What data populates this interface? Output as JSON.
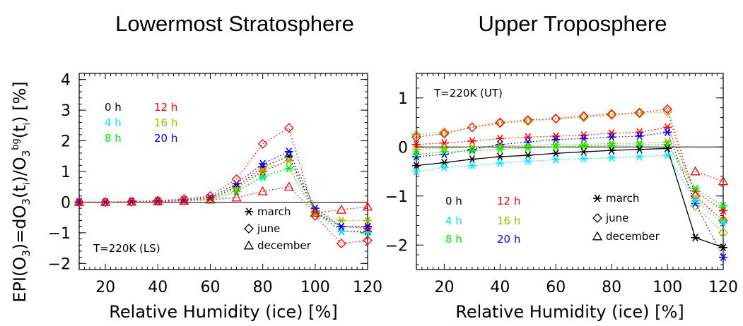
{
  "ylabel": "EPI(O3)=dO3(ti)/O3bg(ti) [%]",
  "chart_data": [
    {
      "type": "line",
      "title": "Lowermost Stratosphere",
      "xlabel": "Relative Humidity (ice) [%]",
      "annotation": "T=220K (LS)",
      "xlim": [
        10,
        120
      ],
      "ylim": [
        -2.2,
        4.2
      ],
      "xticks": [
        20,
        40,
        60,
        80,
        100,
        120
      ],
      "yticks": [
        -2,
        -1,
        0,
        1,
        2,
        3,
        4
      ],
      "x": [
        10,
        20,
        30,
        40,
        50,
        60,
        70,
        80,
        90,
        100,
        110,
        120
      ],
      "hour_legend": [
        {
          "label": "0 h",
          "color": "#000000"
        },
        {
          "label": "12 h",
          "color": "#ff0000"
        },
        {
          "label": "4 h",
          "color": "#00e5ff"
        },
        {
          "label": "16 h",
          "color": "#99bb00"
        },
        {
          "label": "8 h",
          "color": "#00ee00"
        },
        {
          "label": "20 h",
          "color": "#0000ff"
        }
      ],
      "month_legend": [
        {
          "label": "march",
          "marker": "asterisk"
        },
        {
          "label": "june",
          "marker": "diamond"
        },
        {
          "label": "december",
          "marker": "triangle"
        }
      ],
      "series": [
        {
          "name": "0 h march",
          "color": "#000000",
          "marker": "asterisk",
          "values": [
            0,
            0,
            0.02,
            0.03,
            0.06,
            0.12,
            0.5,
            1.15,
            1.5,
            -0.3,
            -0.95,
            -0.95
          ]
        },
        {
          "name": "4 h march",
          "color": "#00e5ff",
          "marker": "asterisk",
          "values": [
            0,
            0,
            0.01,
            0.02,
            0.05,
            0.1,
            0.35,
            0.8,
            1.1,
            -0.35,
            -0.95,
            -1.0
          ]
        },
        {
          "name": "8 h march",
          "color": "#00ee00",
          "marker": "asterisk",
          "values": [
            0,
            0,
            0.01,
            0.02,
            0.05,
            0.1,
            0.35,
            0.85,
            1.1,
            -0.35,
            -0.8,
            -0.8
          ]
        },
        {
          "name": "12 h march",
          "color": "#ff0000",
          "marker": "asterisk",
          "values": [
            0,
            0,
            0.02,
            0.03,
            0.06,
            0.12,
            0.45,
            1.0,
            1.35,
            -0.3,
            -0.8,
            -0.85
          ]
        },
        {
          "name": "16 h march",
          "color": "#99bb00",
          "marker": "asterisk",
          "values": [
            0,
            0,
            0.02,
            0.03,
            0.06,
            0.12,
            0.45,
            1.05,
            1.35,
            -0.3,
            -0.6,
            -0.6
          ]
        },
        {
          "name": "20 h march",
          "color": "#0000ff",
          "marker": "asterisk",
          "values": [
            0,
            0,
            0.02,
            0.04,
            0.07,
            0.15,
            0.6,
            1.25,
            1.65,
            -0.2,
            -0.8,
            -0.8
          ]
        },
        {
          "name": "0 h june",
          "color": "#ff0000",
          "marker": "diamond",
          "values": [
            0,
            0,
            0.02,
            0.05,
            0.1,
            0.2,
            0.75,
            1.9,
            2.42,
            -0.45,
            -1.35,
            -1.25
          ]
        },
        {
          "name": "0 h december",
          "color": "#ff0000",
          "marker": "triangle",
          "values": [
            0,
            0,
            0.01,
            0.02,
            0.04,
            0.08,
            0.15,
            0.35,
            0.5,
            -0.35,
            -0.25,
            -0.15
          ]
        }
      ]
    },
    {
      "type": "line",
      "title": "Upper Troposphere",
      "xlabel": "Relative Humidity (ice) [%]",
      "annotation": "T=220K (UT)",
      "xlim": [
        10,
        120
      ],
      "ylim": [
        -2.5,
        1.5
      ],
      "xticks": [
        20,
        40,
        60,
        80,
        100,
        120
      ],
      "yticks": [
        -2,
        -1,
        0,
        1
      ],
      "x": [
        10,
        20,
        30,
        40,
        50,
        60,
        70,
        80,
        90,
        100,
        110,
        120
      ],
      "hour_legend": [
        {
          "label": "0 h",
          "color": "#000000"
        },
        {
          "label": "12 h",
          "color": "#ff0000"
        },
        {
          "label": "4 h",
          "color": "#00e5ff"
        },
        {
          "label": "16 h",
          "color": "#99bb00"
        },
        {
          "label": "8 h",
          "color": "#00ee00"
        },
        {
          "label": "20 h",
          "color": "#0000ff"
        }
      ],
      "month_legend": [
        {
          "label": "march",
          "marker": "asterisk"
        },
        {
          "label": "june",
          "marker": "diamond"
        },
        {
          "label": "december",
          "marker": "triangle"
        }
      ],
      "series": [
        {
          "name": "june 16 h",
          "color": "#99bb00",
          "marker": "diamond",
          "values": [
            0.25,
            0.3,
            0.4,
            0.48,
            0.52,
            0.57,
            0.6,
            0.65,
            0.68,
            0.72,
            -1.2,
            -1.75
          ]
        },
        {
          "name": "june 12 h",
          "color": "#ff0000",
          "marker": "diamond",
          "values": [
            0.2,
            0.27,
            0.4,
            0.5,
            0.55,
            0.58,
            0.63,
            0.67,
            0.7,
            0.77,
            -1.0,
            -1.5
          ]
        },
        {
          "name": "march 12 h",
          "color": "#ff0000",
          "marker": "asterisk",
          "values": [
            0.05,
            0.08,
            0.12,
            0.17,
            0.2,
            0.22,
            0.24,
            0.28,
            0.3,
            0.4,
            -0.9,
            -1.3
          ]
        },
        {
          "name": "march 20 h",
          "color": "#0000ff",
          "marker": "asterisk",
          "values": [
            -0.2,
            -0.15,
            -0.05,
            0.05,
            0.1,
            0.15,
            0.17,
            0.2,
            0.22,
            0.3,
            -1.15,
            -2.25
          ]
        },
        {
          "name": "march 16 h",
          "color": "#99bb00",
          "marker": "asterisk",
          "values": [
            -0.05,
            -0.02,
            0.0,
            0.02,
            0.03,
            0.05,
            0.05,
            0.07,
            0.08,
            0.1,
            -1.05,
            -1.5
          ]
        },
        {
          "name": "march 8 h",
          "color": "#00ee00",
          "marker": "asterisk",
          "values": [
            -0.15,
            -0.1,
            -0.08,
            -0.05,
            -0.02,
            0.0,
            0.02,
            0.03,
            0.04,
            0.05,
            -0.85,
            -1.2
          ]
        },
        {
          "name": "march 0 h",
          "color": "#000000",
          "marker": "asterisk",
          "values": [
            -0.38,
            -0.32,
            -0.25,
            -0.2,
            -0.17,
            -0.13,
            -0.1,
            -0.07,
            -0.05,
            -0.03,
            -1.85,
            -2.05
          ]
        },
        {
          "name": "march 4 h",
          "color": "#00e5ff",
          "marker": "asterisk",
          "values": [
            -0.5,
            -0.42,
            -0.38,
            -0.33,
            -0.29,
            -0.26,
            -0.24,
            -0.22,
            -0.2,
            -0.17,
            -1.1,
            -1.55
          ]
        },
        {
          "name": "december 12 h",
          "color": "#ff0000",
          "marker": "triangle",
          "values": [
            null,
            null,
            null,
            null,
            null,
            null,
            null,
            null,
            null,
            null,
            -0.5,
            -0.7
          ]
        }
      ]
    }
  ]
}
